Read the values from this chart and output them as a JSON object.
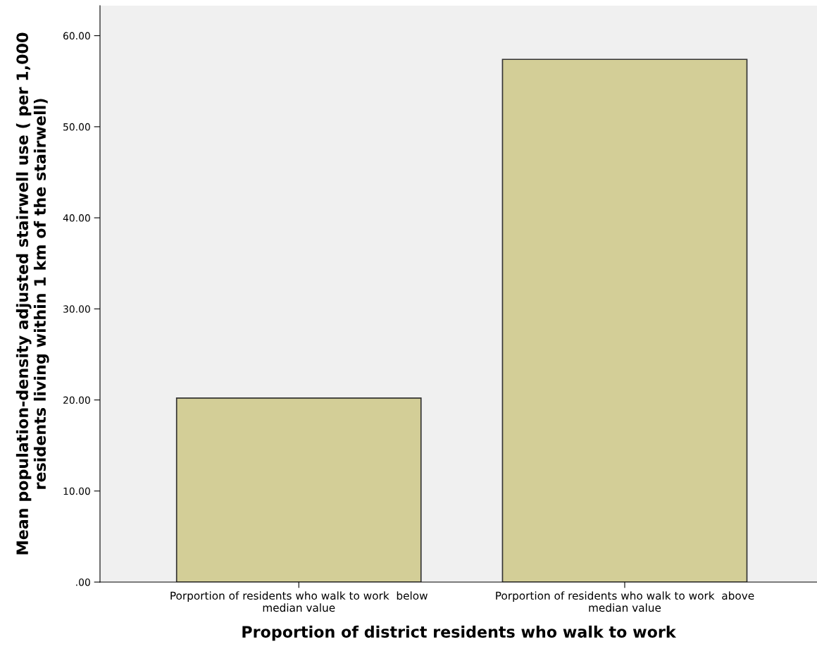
{
  "chart_data": {
    "type": "bar",
    "xlabel": "Proportion of district residents who walk to work",
    "ylabel": "Mean population-density adjusted stairwell use ( per 1,000\nresidents living within 1 km of the stairwell)",
    "categories": [
      "Porportion of residents who walk to work  below\nmedian value",
      "Porportion of residents who walk to work  above\nmedian value"
    ],
    "values": [
      20.2,
      57.4
    ],
    "color": "#d3ce97",
    "ylim": [
      0,
      63.3
    ],
    "yticks": [
      {
        "value": 0,
        "label": ".00"
      },
      {
        "value": 10,
        "label": "10.00"
      },
      {
        "value": 20,
        "label": "20.00"
      },
      {
        "value": 30,
        "label": "30.00"
      },
      {
        "value": 40,
        "label": "40.00"
      },
      {
        "value": 50,
        "label": "50.00"
      },
      {
        "value": 60,
        "label": "60.00"
      }
    ],
    "grid": false,
    "legend": false
  }
}
